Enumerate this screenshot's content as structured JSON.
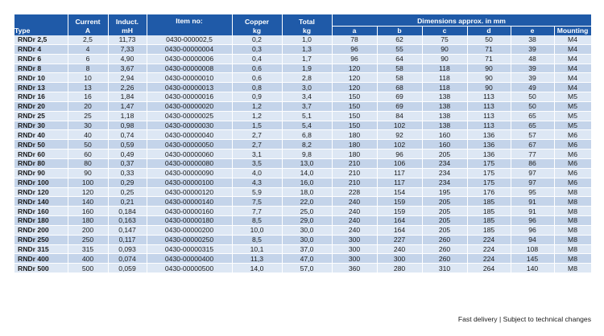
{
  "headers": {
    "type": "Type",
    "current": [
      "Current",
      "A"
    ],
    "induct": [
      "Induct.",
      "mH"
    ],
    "item": "Item no:",
    "copper": [
      "Copper",
      "kg"
    ],
    "total": [
      "Total",
      "kg"
    ],
    "dims": "Dimensions approx. in mm",
    "a": "a",
    "b": "b",
    "c": "c",
    "d": "d",
    "e": "e",
    "mounting": "Mounting"
  },
  "rows": [
    [
      "RNDr 2,5",
      "2,5",
      "11,73",
      "0430-000002,5",
      "0,2",
      "1,0",
      "78",
      "62",
      "75",
      "50",
      "38",
      "M4"
    ],
    [
      "RNDr 4",
      "4",
      "7,33",
      "0430-00000004",
      "0,3",
      "1,3",
      "96",
      "55",
      "90",
      "71",
      "39",
      "M4"
    ],
    [
      "RNDr 6",
      "6",
      "4,90",
      "0430-00000006",
      "0,4",
      "1,7",
      "96",
      "64",
      "90",
      "71",
      "48",
      "M4"
    ],
    [
      "RNDr 8",
      "8",
      "3,67",
      "0430-00000008",
      "0,6",
      "1,9",
      "120",
      "58",
      "118",
      "90",
      "39",
      "M4"
    ],
    [
      "RNDr 10",
      "10",
      "2,94",
      "0430-00000010",
      "0,6",
      "2,8",
      "120",
      "58",
      "118",
      "90",
      "39",
      "M4"
    ],
    [
      "RNDr 13",
      "13",
      "2,26",
      "0430-00000013",
      "0,8",
      "3,0",
      "120",
      "68",
      "118",
      "90",
      "49",
      "M4"
    ],
    [
      "RNDr 16",
      "16",
      "1,84",
      "0430-00000016",
      "0,9",
      "3,4",
      "150",
      "69",
      "138",
      "113",
      "50",
      "M5"
    ],
    [
      "RNDr 20",
      "20",
      "1,47",
      "0430-00000020",
      "1,2",
      "3,7",
      "150",
      "69",
      "138",
      "113",
      "50",
      "M5"
    ],
    [
      "RNDr 25",
      "25",
      "1,18",
      "0430-00000025",
      "1,2",
      "5,1",
      "150",
      "84",
      "138",
      "113",
      "65",
      "M5"
    ],
    [
      "RNDr 30",
      "30",
      "0,98",
      "0430-00000030",
      "1,5",
      "5,4",
      "150",
      "102",
      "138",
      "113",
      "65",
      "M5"
    ],
    [
      "RNDr 40",
      "40",
      "0,74",
      "0430-00000040",
      "2,7",
      "6,8",
      "180",
      "92",
      "160",
      "136",
      "57",
      "M6"
    ],
    [
      "RNDr 50",
      "50",
      "0,59",
      "0430-00000050",
      "2,7",
      "8,2",
      "180",
      "102",
      "160",
      "136",
      "67",
      "M6"
    ],
    [
      "RNDr 60",
      "60",
      "0,49",
      "0430-00000060",
      "3,1",
      "9,8",
      "180",
      "96",
      "205",
      "136",
      "77",
      "M6"
    ],
    [
      "RNDr 80",
      "80",
      "0,37",
      "0430-00000080",
      "3,5",
      "13,0",
      "210",
      "106",
      "234",
      "175",
      "86",
      "M6"
    ],
    [
      "RNDr 90",
      "90",
      "0,33",
      "0430-00000090",
      "4,0",
      "14,0",
      "210",
      "117",
      "234",
      "175",
      "97",
      "M6"
    ],
    [
      "RNDr 100",
      "100",
      "0,29",
      "0430-00000100",
      "4,3",
      "16,0",
      "210",
      "117",
      "234",
      "175",
      "97",
      "M6"
    ],
    [
      "RNDr 120",
      "120",
      "0,25",
      "0430-00000120",
      "5,9",
      "18,0",
      "228",
      "154",
      "195",
      "176",
      "95",
      "M8"
    ],
    [
      "RNDr 140",
      "140",
      "0,21",
      "0430-00000140",
      "7,5",
      "22,0",
      "240",
      "159",
      "205",
      "185",
      "91",
      "M8"
    ],
    [
      "RNDr 160",
      "160",
      "0,184",
      "0430-00000160",
      "7,7",
      "25,0",
      "240",
      "159",
      "205",
      "185",
      "91",
      "M8"
    ],
    [
      "RNDr 180",
      "180",
      "0,163",
      "0430-00000180",
      "8,5",
      "29,0",
      "240",
      "164",
      "205",
      "185",
      "96",
      "M8"
    ],
    [
      "RNDr 200",
      "200",
      "0,147",
      "0430-00000200",
      "10,0",
      "30,0",
      "240",
      "164",
      "205",
      "185",
      "96",
      "M8"
    ],
    [
      "RNDr 250",
      "250",
      "0,117",
      "0430-00000250",
      "8,5",
      "30,0",
      "300",
      "227",
      "260",
      "224",
      "94",
      "M8"
    ],
    [
      "RNDr 315",
      "315",
      "0,093",
      "0430-00000315",
      "10,1",
      "37,0",
      "300",
      "240",
      "260",
      "224",
      "108",
      "M8"
    ],
    [
      "RNDr 400",
      "400",
      "0,074",
      "0430-00000400",
      "11,3",
      "47,0",
      "300",
      "300",
      "260",
      "224",
      "145",
      "M8"
    ],
    [
      "RNDr 500",
      "500",
      "0,059",
      "0430-00000500",
      "14,0",
      "57,0",
      "360",
      "280",
      "310",
      "264",
      "140",
      "M8"
    ]
  ],
  "footer": "Fast delivery | Subject to technical changes",
  "colors": {
    "header_bg": "#1f5aa8",
    "row_light": "#dde7f4",
    "row_dark": "#c4d4ea"
  }
}
